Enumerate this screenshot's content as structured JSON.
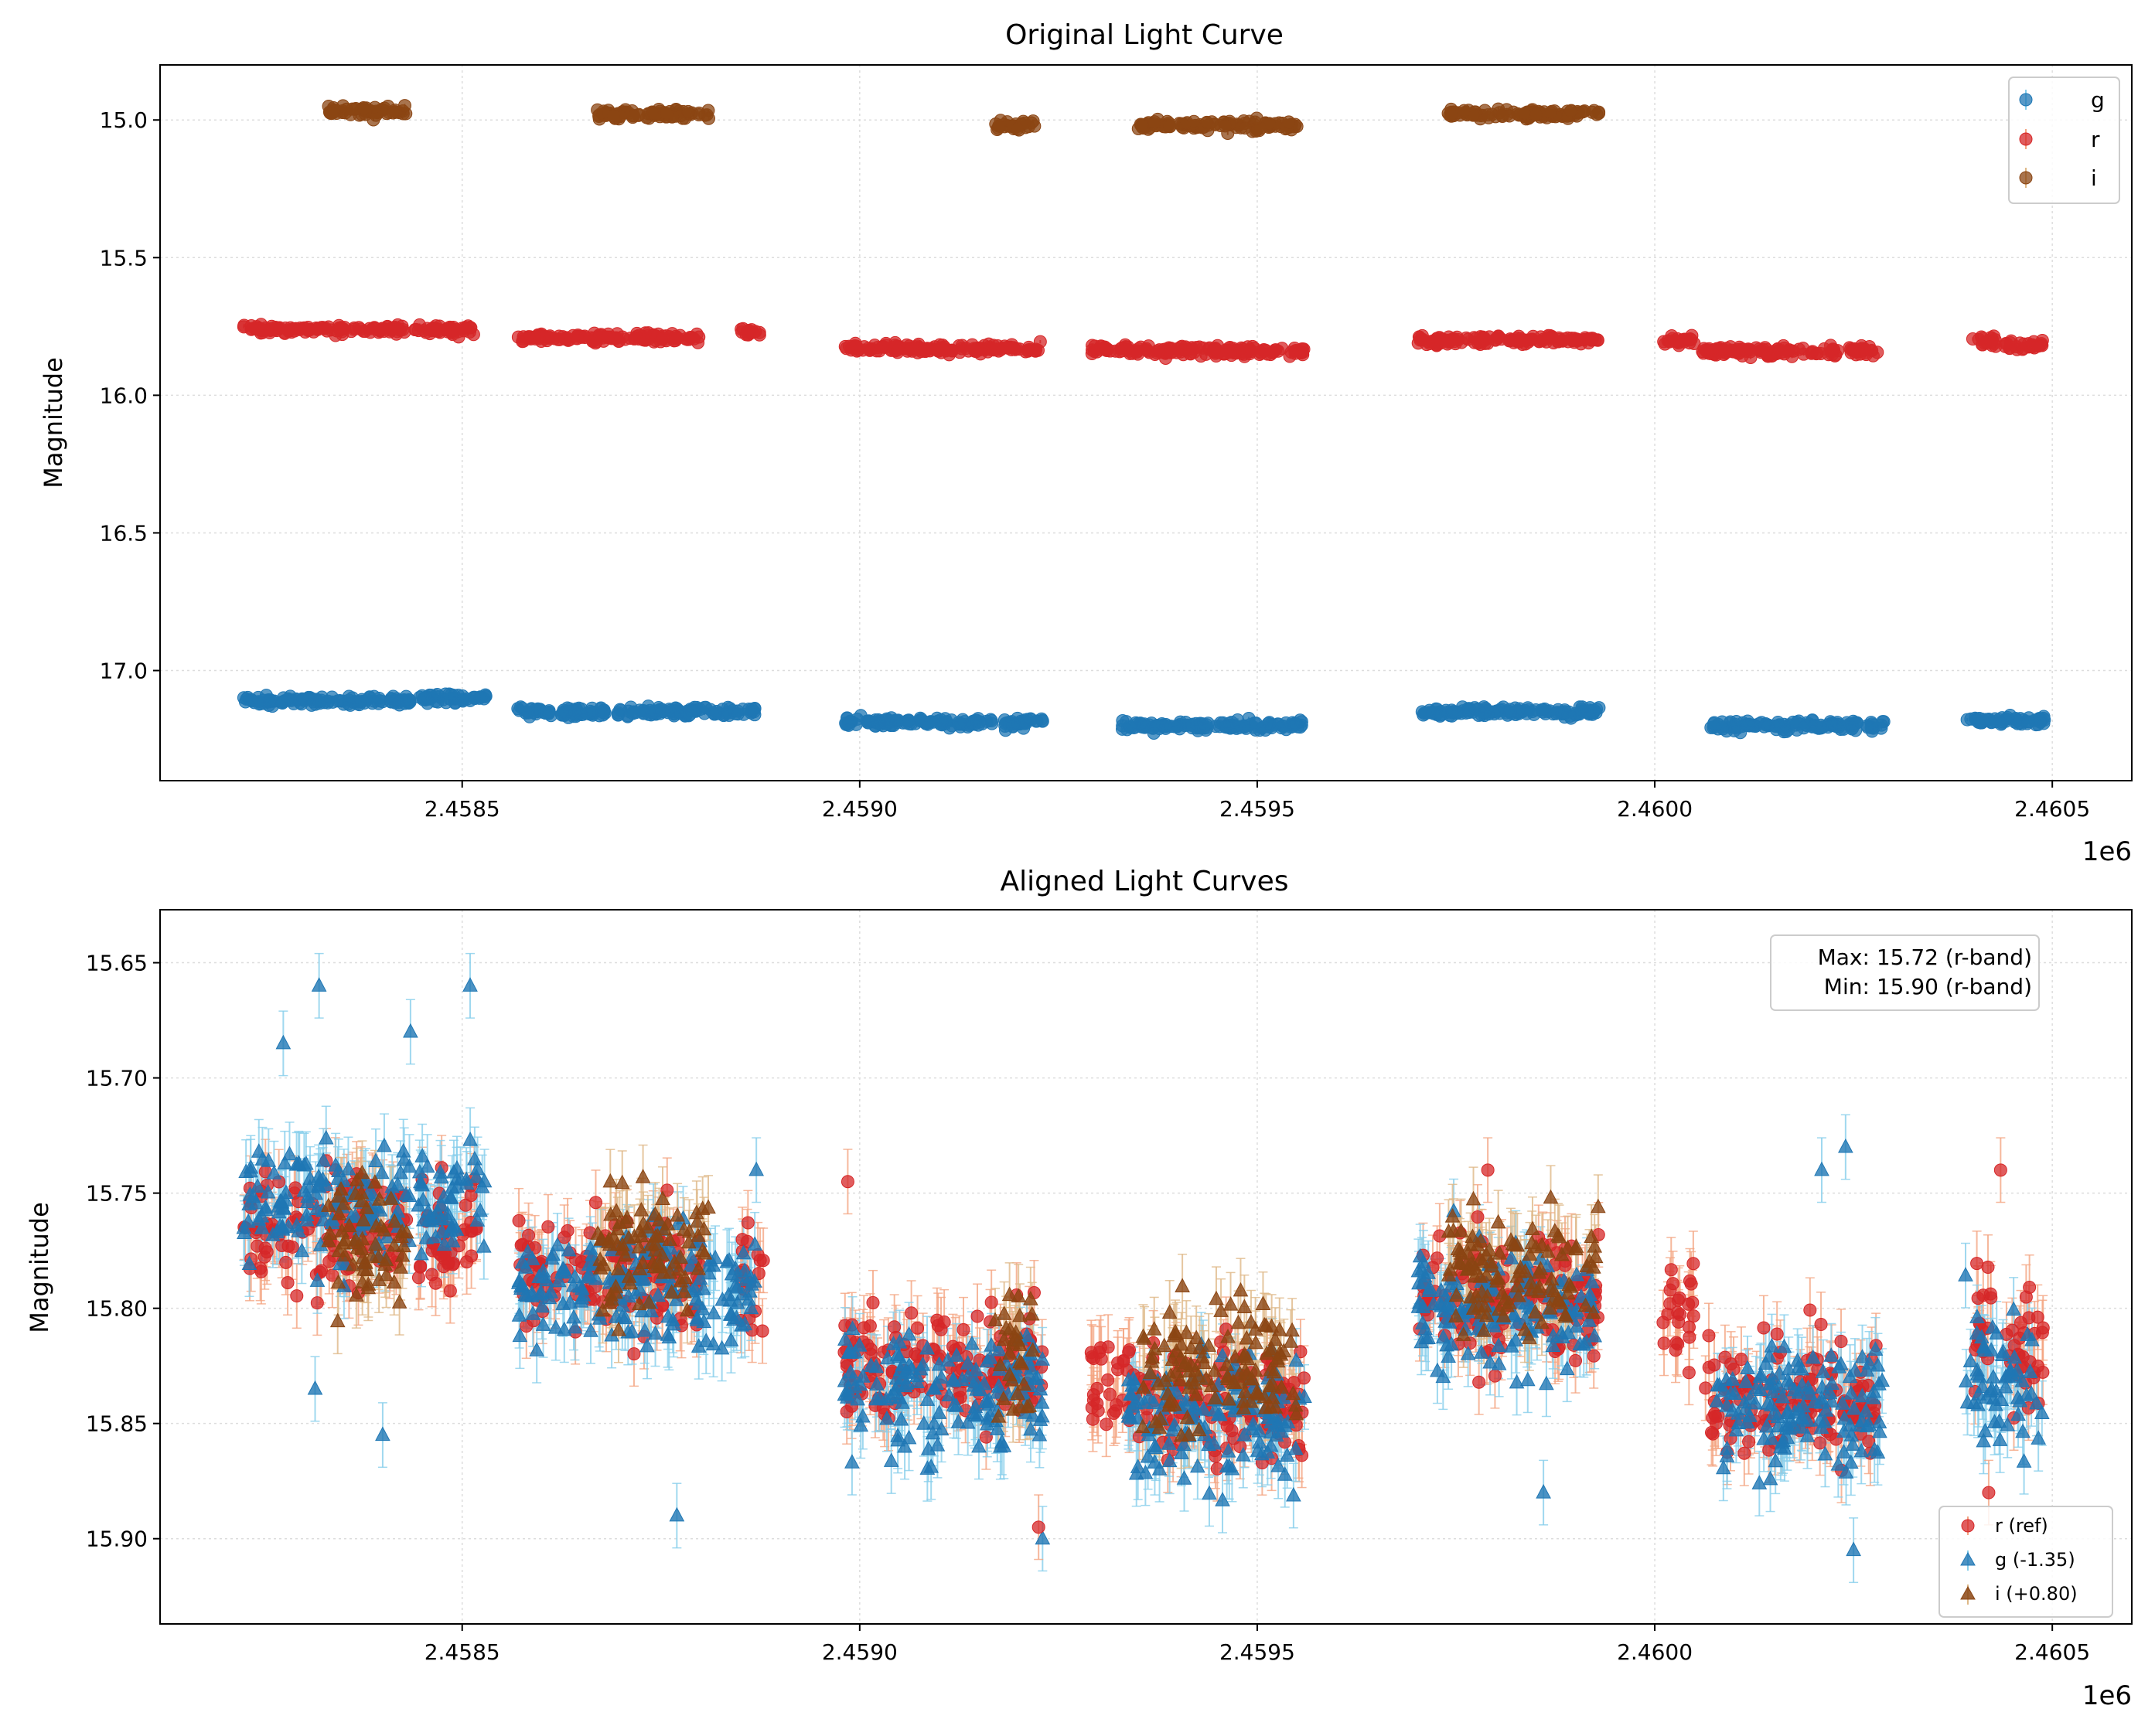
{
  "chart_data": [
    {
      "type": "scatter",
      "title": "Original Light Curve",
      "xlabel": "",
      "ylabel": "Magnitude",
      "x_offset_label": "1e6",
      "xlim": [
        2458120,
        2460600
      ],
      "ylim": [
        17.4,
        14.8
      ],
      "y_inverted": true,
      "grid": true,
      "xticks": [
        2458500,
        2459000,
        2459500,
        2460000,
        2460500
      ],
      "xtick_labels": [
        "2.4585",
        "2.4590",
        "2.4595",
        "2.4600",
        "2.4605"
      ],
      "yticks": [
        15.0,
        15.5,
        16.0,
        16.5,
        17.0
      ],
      "ytick_labels": [
        "15.0",
        "15.5",
        "16.0",
        "16.5",
        "17.0"
      ],
      "legend": {
        "placement": "top-right",
        "entries": [
          "g",
          "r",
          "i"
        ]
      },
      "series_spec": [
        {
          "name": "g",
          "color": "#1f77b4",
          "marker": "circle",
          "segments": [
            [
              2458225,
              2458435,
              17.11
            ],
            [
              2458445,
              2458530,
              17.1
            ],
            [
              2458570,
              2458870,
              17.15
            ],
            [
              2458980,
              2459230,
              17.19
            ],
            [
              2459330,
              2459560,
              17.2
            ],
            [
              2459700,
              2459930,
              17.15
            ],
            [
              2460070,
              2460290,
              17.2
            ],
            [
              2460390,
              2460490,
              17.18
            ]
          ]
        },
        {
          "name": "r",
          "color": "#d62728",
          "marker": "circle",
          "segments": [
            [
              2458225,
              2458430,
              15.76
            ],
            [
              2458440,
              2458520,
              15.76
            ],
            [
              2458570,
              2458800,
              15.79
            ],
            [
              2458850,
              2458880,
              15.77
            ],
            [
              2458980,
              2459230,
              15.83
            ],
            [
              2459290,
              2459340,
              15.83
            ],
            [
              2459340,
              2459560,
              15.84
            ],
            [
              2459700,
              2459930,
              15.8
            ],
            [
              2460010,
              2460050,
              15.8
            ],
            [
              2460060,
              2460280,
              15.84
            ],
            [
              2460400,
              2460430,
              15.8
            ],
            [
              2460440,
              2460490,
              15.82
            ]
          ]
        },
        {
          "name": "i",
          "color": "#8b4513",
          "marker": "circle",
          "segments": [
            [
              2458330,
              2458430,
              14.97
            ],
            [
              2458670,
              2458810,
              14.98
            ],
            [
              2459170,
              2459220,
              15.02
            ],
            [
              2459350,
              2459550,
              15.02
            ],
            [
              2459740,
              2459930,
              14.98
            ]
          ]
        }
      ]
    },
    {
      "type": "scatter",
      "title": "Aligned Light Curves",
      "xlabel": "",
      "ylabel": "Magnitude",
      "x_offset_label": "1e6",
      "xlim": [
        2458120,
        2460600
      ],
      "ylim": [
        15.937,
        15.627
      ],
      "y_inverted": true,
      "grid": true,
      "xticks": [
        2458500,
        2459000,
        2459500,
        2460000,
        2460500
      ],
      "xtick_labels": [
        "2.4585",
        "2.4590",
        "2.4595",
        "2.4600",
        "2.4605"
      ],
      "yticks": [
        15.65,
        15.7,
        15.75,
        15.8,
        15.85,
        15.9
      ],
      "ytick_labels": [
        "15.65",
        "15.70",
        "15.75",
        "15.80",
        "15.85",
        "15.90"
      ],
      "legend": {
        "placement": "bottom-right",
        "entries": [
          "r (ref)",
          "g (-1.35)",
          "i (+0.80)"
        ]
      },
      "annotation": {
        "lines": [
          "Max: 15.72 (r-band)",
          "Min: 15.90 (r-band)"
        ],
        "placement": "top-right"
      },
      "series_spec": [
        {
          "name": "r (ref)",
          "color": "#d62728",
          "ecolor": "#f4a582",
          "marker": "circle",
          "segments": [
            [
              2458225,
              2458430,
              15.765
            ],
            [
              2458440,
              2458520,
              15.77
            ],
            [
              2458570,
              2458800,
              15.785
            ],
            [
              2458850,
              2458880,
              15.79
            ],
            [
              2458980,
              2459230,
              15.825
            ],
            [
              2459290,
              2459340,
              15.835
            ],
            [
              2459340,
              2459560,
              15.84
            ],
            [
              2459700,
              2459930,
              15.795
            ],
            [
              2460010,
              2460050,
              15.8
            ],
            [
              2460060,
              2460280,
              15.84
            ],
            [
              2460400,
              2460430,
              15.805
            ],
            [
              2460440,
              2460490,
              15.82
            ]
          ]
        },
        {
          "name": "g (-1.35)",
          "color": "#1f77b4",
          "ecolor": "#87ceeb",
          "marker": "triangle",
          "segments": [
            [
              2458225,
              2458435,
              15.755
            ],
            [
              2458445,
              2458530,
              15.755
            ],
            [
              2458570,
              2458870,
              15.79
            ],
            [
              2458980,
              2459230,
              15.835
            ],
            [
              2459330,
              2459560,
              15.85
            ],
            [
              2459700,
              2459930,
              15.8
            ],
            [
              2460070,
              2460290,
              15.845
            ],
            [
              2460390,
              2460490,
              15.83
            ]
          ]
        },
        {
          "name": "i (+0.80)",
          "color": "#8b4513",
          "ecolor": "#deb887",
          "marker": "triangle",
          "segments": [
            [
              2458330,
              2458430,
              15.77
            ],
            [
              2458670,
              2458810,
              15.775
            ],
            [
              2459170,
              2459220,
              15.82
            ],
            [
              2459350,
              2459550,
              15.825
            ],
            [
              2459740,
              2459930,
              15.785
            ]
          ]
        }
      ],
      "highlights": [
        {
          "series": "g (-1.35)",
          "x": 2458320,
          "y": 15.66
        },
        {
          "series": "g (-1.35)",
          "x": 2458510,
          "y": 15.66
        },
        {
          "series": "g (-1.35)",
          "x": 2458275,
          "y": 15.685
        },
        {
          "series": "g (-1.35)",
          "x": 2458435,
          "y": 15.68
        },
        {
          "series": "g (-1.35)",
          "x": 2460240,
          "y": 15.73
        },
        {
          "series": "g (-1.35)",
          "x": 2460210,
          "y": 15.74
        },
        {
          "series": "g (-1.35)",
          "x": 2458870,
          "y": 15.74
        },
        {
          "series": "g (-1.35)",
          "x": 2458315,
          "y": 15.835
        },
        {
          "series": "g (-1.35)",
          "x": 2458400,
          "y": 15.855
        },
        {
          "series": "g (-1.35)",
          "x": 2458770,
          "y": 15.89
        },
        {
          "series": "g (-1.35)",
          "x": 2459230,
          "y": 15.9
        },
        {
          "series": "g (-1.35)",
          "x": 2460250,
          "y": 15.905
        },
        {
          "series": "g (-1.35)",
          "x": 2459860,
          "y": 15.88
        },
        {
          "series": "r (ref)",
          "x": 2458985,
          "y": 15.745
        },
        {
          "series": "r (ref)",
          "x": 2460435,
          "y": 15.74
        },
        {
          "series": "r (ref)",
          "x": 2460420,
          "y": 15.88
        },
        {
          "series": "r (ref)",
          "x": 2459225,
          "y": 15.895
        },
        {
          "series": "r (ref)",
          "x": 2459790,
          "y": 15.74
        }
      ]
    }
  ]
}
